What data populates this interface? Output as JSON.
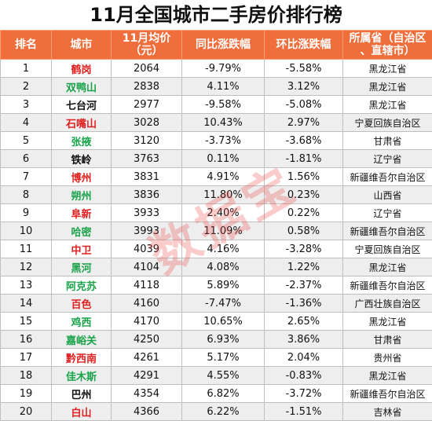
{
  "title": "11月全国城市二手房价排行榜",
  "header": {
    "rank": "排名",
    "city": "城市",
    "price_l1": "11月均价",
    "price_l2": "（元）",
    "yoy": "同比涨跌幅",
    "mom": "环比涨跌幅",
    "prov_l1": "所属省（自治区",
    "prov_l2": "、直辖市）"
  },
  "watermark": "数据宝",
  "colors": {
    "header_bg": "#f06e3b",
    "city_red": "#e02020",
    "city_green": "#1aa34a",
    "city_black": "#111111",
    "watermark": "#e84646"
  },
  "rows": [
    {
      "rank": "1",
      "city": "鹤岗",
      "city_color": "#e02020",
      "price": "2064",
      "yoy": "-9.79%",
      "mom": "-5.58%",
      "province": "黑龙江省"
    },
    {
      "rank": "2",
      "city": "双鸭山",
      "city_color": "#1aa34a",
      "price": "2838",
      "yoy": "4.11%",
      "mom": "3.12%",
      "province": "黑龙江省"
    },
    {
      "rank": "3",
      "city": "七台河",
      "city_color": "#111111",
      "price": "2977",
      "yoy": "-9.58%",
      "mom": "-5.08%",
      "province": "黑龙江省"
    },
    {
      "rank": "4",
      "city": "石嘴山",
      "city_color": "#e02020",
      "price": "3028",
      "yoy": "10.43%",
      "mom": "2.97%",
      "province": "宁夏回族自治区"
    },
    {
      "rank": "5",
      "city": "张掖",
      "city_color": "#1aa34a",
      "price": "3120",
      "yoy": "-3.73%",
      "mom": "-3.68%",
      "province": "甘肃省"
    },
    {
      "rank": "6",
      "city": "铁岭",
      "city_color": "#111111",
      "price": "3763",
      "yoy": "0.11%",
      "mom": "-1.81%",
      "province": "辽宁省"
    },
    {
      "rank": "7",
      "city": "博州",
      "city_color": "#e02020",
      "price": "3831",
      "yoy": "4.91%",
      "mom": "1.56%",
      "province": "新疆维吾尔自治区"
    },
    {
      "rank": "8",
      "city": "朔州",
      "city_color": "#1aa34a",
      "price": "3836",
      "yoy": "11.80%",
      "mom": "0.23%",
      "province": "山西省"
    },
    {
      "rank": "9",
      "city": "阜新",
      "city_color": "#e02020",
      "price": "3933",
      "yoy": "2.40%",
      "mom": "0.22%",
      "province": "辽宁省"
    },
    {
      "rank": "10",
      "city": "哈密",
      "city_color": "#1aa34a",
      "price": "3993",
      "yoy": "11.09%",
      "mom": "0.58%",
      "province": "新疆维吾尔自治区"
    },
    {
      "rank": "11",
      "city": "中卫",
      "city_color": "#e02020",
      "price": "4039",
      "yoy": "4.16%",
      "mom": "-3.28%",
      "province": "宁夏回族自治区"
    },
    {
      "rank": "12",
      "city": "黑河",
      "city_color": "#1aa34a",
      "price": "4104",
      "yoy": "4.08%",
      "mom": "1.22%",
      "province": "黑龙江省"
    },
    {
      "rank": "13",
      "city": "阿克苏",
      "city_color": "#1aa34a",
      "price": "4118",
      "yoy": "5.89%",
      "mom": "-2.37%",
      "province": "新疆维吾尔自治区"
    },
    {
      "rank": "14",
      "city": "百色",
      "city_color": "#e02020",
      "price": "4160",
      "yoy": "-7.47%",
      "mom": "-1.36%",
      "province": "广西壮族自治区"
    },
    {
      "rank": "15",
      "city": "鸡西",
      "city_color": "#1aa34a",
      "price": "4170",
      "yoy": "10.65%",
      "mom": "2.65%",
      "province": "黑龙江省"
    },
    {
      "rank": "16",
      "city": "嘉峪关",
      "city_color": "#1aa34a",
      "price": "4250",
      "yoy": "6.93%",
      "mom": "3.86%",
      "province": "甘肃省"
    },
    {
      "rank": "17",
      "city": "黔西南",
      "city_color": "#e02020",
      "price": "4261",
      "yoy": "5.17%",
      "mom": "2.04%",
      "province": "贵州省"
    },
    {
      "rank": "18",
      "city": "佳木斯",
      "city_color": "#1aa34a",
      "price": "4291",
      "yoy": "4.55%",
      "mom": "-0.83%",
      "province": "黑龙江省"
    },
    {
      "rank": "19",
      "city": "巴州",
      "city_color": "#111111",
      "price": "4354",
      "yoy": "6.82%",
      "mom": "-3.72%",
      "province": "新疆维吾尔自治区"
    },
    {
      "rank": "20",
      "city": "白山",
      "city_color": "#e02020",
      "price": "4366",
      "yoy": "6.22%",
      "mom": "-1.51%",
      "province": "吉林省"
    }
  ]
}
